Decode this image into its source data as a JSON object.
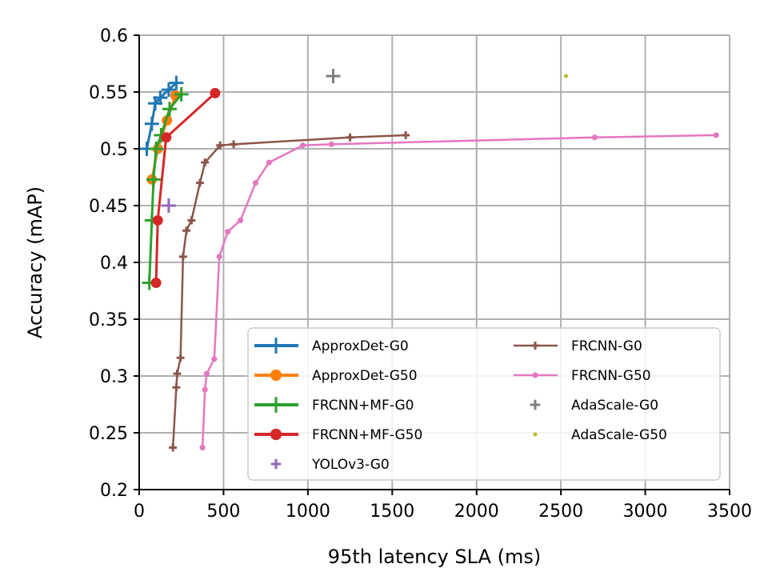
{
  "chart_data": {
    "type": "line",
    "title": "",
    "xlabel": "95th latency SLA (ms)",
    "ylabel": "Accuracy (mAP)",
    "xlim": [
      0,
      3500
    ],
    "ylim": [
      0.2,
      0.6
    ],
    "xticks": [
      0,
      500,
      1000,
      1500,
      2000,
      2500,
      3000,
      3500
    ],
    "xtick_labels": [
      "0",
      "500",
      "1000",
      "1500",
      "2000",
      "2500",
      "3000",
      "3500"
    ],
    "yticks": [
      0.2,
      0.25,
      0.3,
      0.35,
      0.4,
      0.45,
      0.5,
      0.55,
      0.6
    ],
    "ytick_labels": [
      "0.2",
      "0.25",
      "0.3",
      "0.35",
      "0.4",
      "0.45",
      "0.5",
      "0.55",
      "0.6"
    ],
    "grid": true,
    "legend_position": "bottom-right",
    "series": [
      {
        "name": "ApproxDet-G0",
        "color": "#1f77b4",
        "marker": "plus",
        "line": true,
        "x": [
          45,
          75,
          95,
          125,
          175,
          220
        ],
        "y": [
          0.5,
          0.522,
          0.54,
          0.545,
          0.552,
          0.558
        ]
      },
      {
        "name": "ApproxDet-G50",
        "color": "#ff7f0e",
        "marker": "circle",
        "line": true,
        "x": [
          75,
          110,
          165,
          215
        ],
        "y": [
          0.473,
          0.5,
          0.525,
          0.547
        ]
      },
      {
        "name": "FRCNN+MF-G0",
        "color": "#2ca02c",
        "marker": "plus",
        "line": true,
        "x": [
          60,
          75,
          85,
          100,
          130,
          180,
          250
        ],
        "y": [
          0.382,
          0.437,
          0.473,
          0.5,
          0.512,
          0.535,
          0.548
        ]
      },
      {
        "name": "FRCNN+MF-G50",
        "color": "#d62728",
        "marker": "circle",
        "line": true,
        "x": [
          100,
          110,
          160,
          450
        ],
        "y": [
          0.382,
          0.437,
          0.51,
          0.549
        ]
      },
      {
        "name": "YOLOv3-G0",
        "color": "#9467bd",
        "marker": "plus",
        "line": false,
        "x": [
          175
        ],
        "y": [
          0.45
        ]
      },
      {
        "name": "FRCNN-G0",
        "color": "#8c564b",
        "marker": "plus",
        "line": true,
        "x": [
          200,
          220,
          225,
          245,
          260,
          280,
          310,
          360,
          390,
          480,
          560,
          1250,
          1580
        ],
        "y": [
          0.237,
          0.29,
          0.302,
          0.316,
          0.405,
          0.428,
          0.437,
          0.47,
          0.488,
          0.503,
          0.504,
          0.51,
          0.512
        ]
      },
      {
        "name": "FRCNN-G50",
        "color": "#e377c2",
        "marker": "circle",
        "line": true,
        "x": [
          375,
          390,
          400,
          445,
          475,
          525,
          600,
          690,
          770,
          970,
          1140,
          2700,
          3420
        ],
        "y": [
          0.237,
          0.288,
          0.302,
          0.315,
          0.405,
          0.427,
          0.437,
          0.47,
          0.488,
          0.503,
          0.504,
          0.51,
          0.512
        ]
      },
      {
        "name": "AdaScale-G0",
        "color": "#7f7f7f",
        "marker": "plus",
        "line": false,
        "x": [
          1150
        ],
        "y": [
          0.564
        ]
      },
      {
        "name": "AdaScale-G50",
        "color": "#bcbd22",
        "marker": "dot",
        "line": false,
        "x": [
          2530
        ],
        "y": [
          0.564
        ]
      }
    ]
  }
}
